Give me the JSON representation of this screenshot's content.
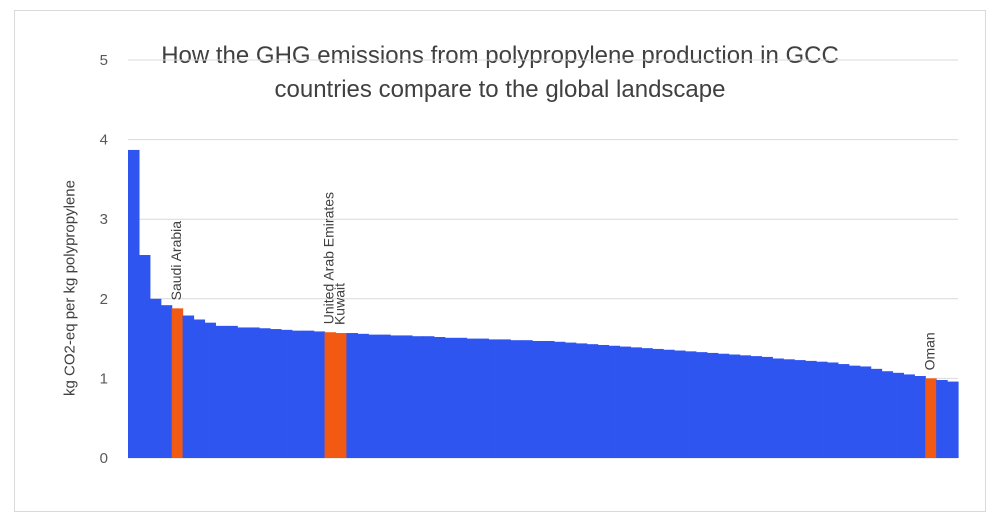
{
  "chart_data": {
    "type": "bar",
    "title": "How the GHG emissions from polypropylene production in GCC countries compare to the global landscape",
    "title_lines": [
      "How the GHG emissions from polypropylene production in GCC",
      "countries compare to the global landscape"
    ],
    "xlabel": "",
    "ylabel": "kg CO2-eq per kg polypropylene",
    "ylim": [
      0,
      5
    ],
    "yticks": [
      "0",
      "1",
      "2",
      "3",
      "4",
      "5"
    ],
    "grid": true,
    "legend": "none",
    "colors": {
      "default": "#2f55f0",
      "highlight": "#f25a14",
      "grid": "#d9d9d9"
    },
    "values": [
      3.87,
      2.55,
      2.0,
      1.92,
      1.88,
      1.79,
      1.74,
      1.7,
      1.66,
      1.66,
      1.64,
      1.64,
      1.63,
      1.62,
      1.61,
      1.6,
      1.6,
      1.59,
      1.58,
      1.57,
      1.57,
      1.56,
      1.55,
      1.55,
      1.54,
      1.54,
      1.53,
      1.53,
      1.52,
      1.51,
      1.51,
      1.5,
      1.5,
      1.49,
      1.49,
      1.48,
      1.48,
      1.47,
      1.47,
      1.46,
      1.45,
      1.44,
      1.43,
      1.42,
      1.41,
      1.4,
      1.39,
      1.38,
      1.37,
      1.36,
      1.35,
      1.34,
      1.33,
      1.32,
      1.31,
      1.3,
      1.29,
      1.28,
      1.27,
      1.25,
      1.24,
      1.23,
      1.22,
      1.21,
      1.2,
      1.18,
      1.16,
      1.15,
      1.12,
      1.09,
      1.07,
      1.05,
      1.03,
      1.0,
      0.98,
      0.96
    ],
    "highlights": [
      {
        "index": 4,
        "label": "Saudi Arabia"
      },
      {
        "index": 18,
        "label": "United Arab Emirates"
      },
      {
        "index": 19,
        "label": "Kuwait"
      },
      {
        "index": 73,
        "label": "Oman"
      }
    ]
  }
}
